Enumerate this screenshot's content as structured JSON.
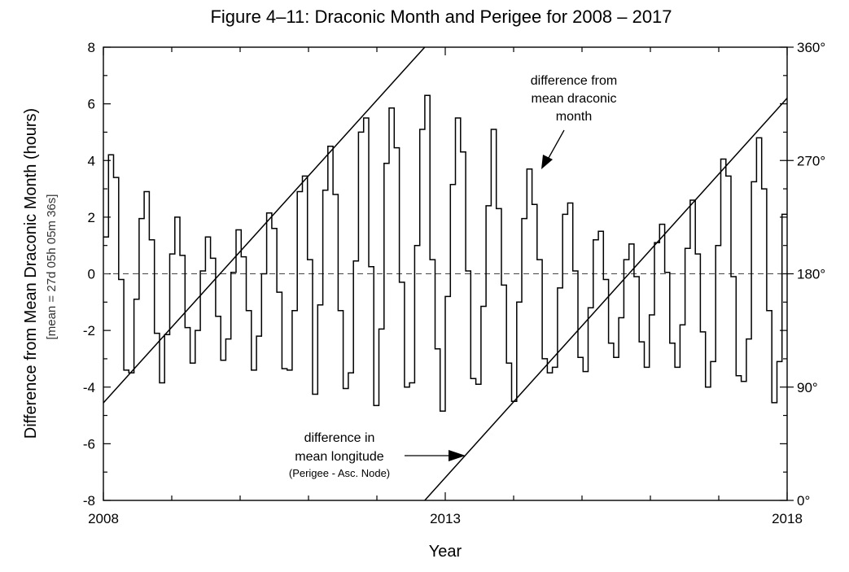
{
  "chart_data": {
    "type": "line",
    "title": "Figure 4–11: Draconic Month and Perigee for 2008 – 2017",
    "xlabel": "Year",
    "ylabel": "Difference from Mean Draconic Month (hours)",
    "ylabel_sub": "[mean = 27d 05h 05m 36s]",
    "xlim": [
      2008,
      2018
    ],
    "ylim": [
      -8,
      8
    ],
    "x_ticks": [
      "2008",
      "2013",
      "2018"
    ],
    "y_ticks": [
      "8",
      "6",
      "4",
      "2",
      "0",
      "-2",
      "-4",
      "-6",
      "-8"
    ],
    "y2_ticks": [
      "360°",
      "270°",
      "180°",
      "90°",
      "0°"
    ],
    "y2lim": [
      0,
      360
    ],
    "grid": false,
    "zero_line": "dashed",
    "annotations": [
      {
        "id": "draconic",
        "lines": [
          "difference from",
          "mean draconic",
          "month"
        ]
      },
      {
        "id": "longitude",
        "lines": [
          "difference in",
          "mean longitude"
        ],
        "sub": "(Perigee - Asc. Node)"
      }
    ],
    "series": [
      {
        "id": "draconic-difference",
        "style": "step",
        "values": [
          1.3,
          4.2,
          3.4,
          -0.2,
          -3.4,
          -3.5,
          -0.9,
          1.95,
          2.9,
          1.2,
          -2.1,
          -3.85,
          -2.15,
          0.7,
          2.0,
          0.65,
          -1.9,
          -3.15,
          -2.0,
          0.1,
          1.3,
          0.55,
          -1.5,
          -3.05,
          -2.3,
          0.05,
          1.55,
          0.6,
          -1.3,
          -3.4,
          -2.2,
          0.0,
          2.15,
          1.6,
          -0.65,
          -3.35,
          -3.4,
          -1.3,
          2.9,
          3.45,
          0.5,
          -4.25,
          -1.1,
          2.95,
          4.5,
          2.8,
          -1.3,
          -4.05,
          -3.5,
          0.45,
          5.0,
          5.5,
          0.25,
          -4.65,
          -1.95,
          3.9,
          5.85,
          4.45,
          -0.3,
          -4.0,
          -3.85,
          1.0,
          5.1,
          6.3,
          0.5,
          -2.65,
          -4.85,
          -0.8,
          3.15,
          5.5,
          4.3,
          0.1,
          -3.7,
          -3.9,
          -1.15,
          2.4,
          5.1,
          2.3,
          -0.4,
          -3.15,
          -4.5,
          -1.0,
          1.95,
          3.7,
          2.45,
          0.5,
          -3.0,
          -3.5,
          -3.3,
          -0.5,
          2.1,
          2.5,
          0.1,
          -2.95,
          -3.45,
          -1.2,
          1.2,
          1.5,
          -0.2,
          -2.45,
          -2.95,
          -1.55,
          0.5,
          1.05,
          -0.1,
          -2.4,
          -3.3,
          -1.45,
          1.1,
          1.75,
          0.05,
          -2.45,
          -3.3,
          -1.8,
          0.9,
          2.6,
          0.7,
          -2.05,
          -4.0,
          -3.1,
          1.0,
          4.05,
          3.45,
          -0.1,
          -3.6,
          -3.8,
          -2.3,
          3.25,
          4.8,
          3.0,
          -1.3,
          -4.55,
          -3.1,
          2.1
        ]
      },
      {
        "id": "mean-longitude-difference",
        "style": "line",
        "axis": "right",
        "segments": [
          [
            [
              2008.0,
              77.5
            ],
            [
              2012.7,
              360.0
            ]
          ],
          [
            [
              2012.7,
              0.0
            ],
            [
              2018.0,
              319.5
            ]
          ]
        ]
      }
    ]
  }
}
